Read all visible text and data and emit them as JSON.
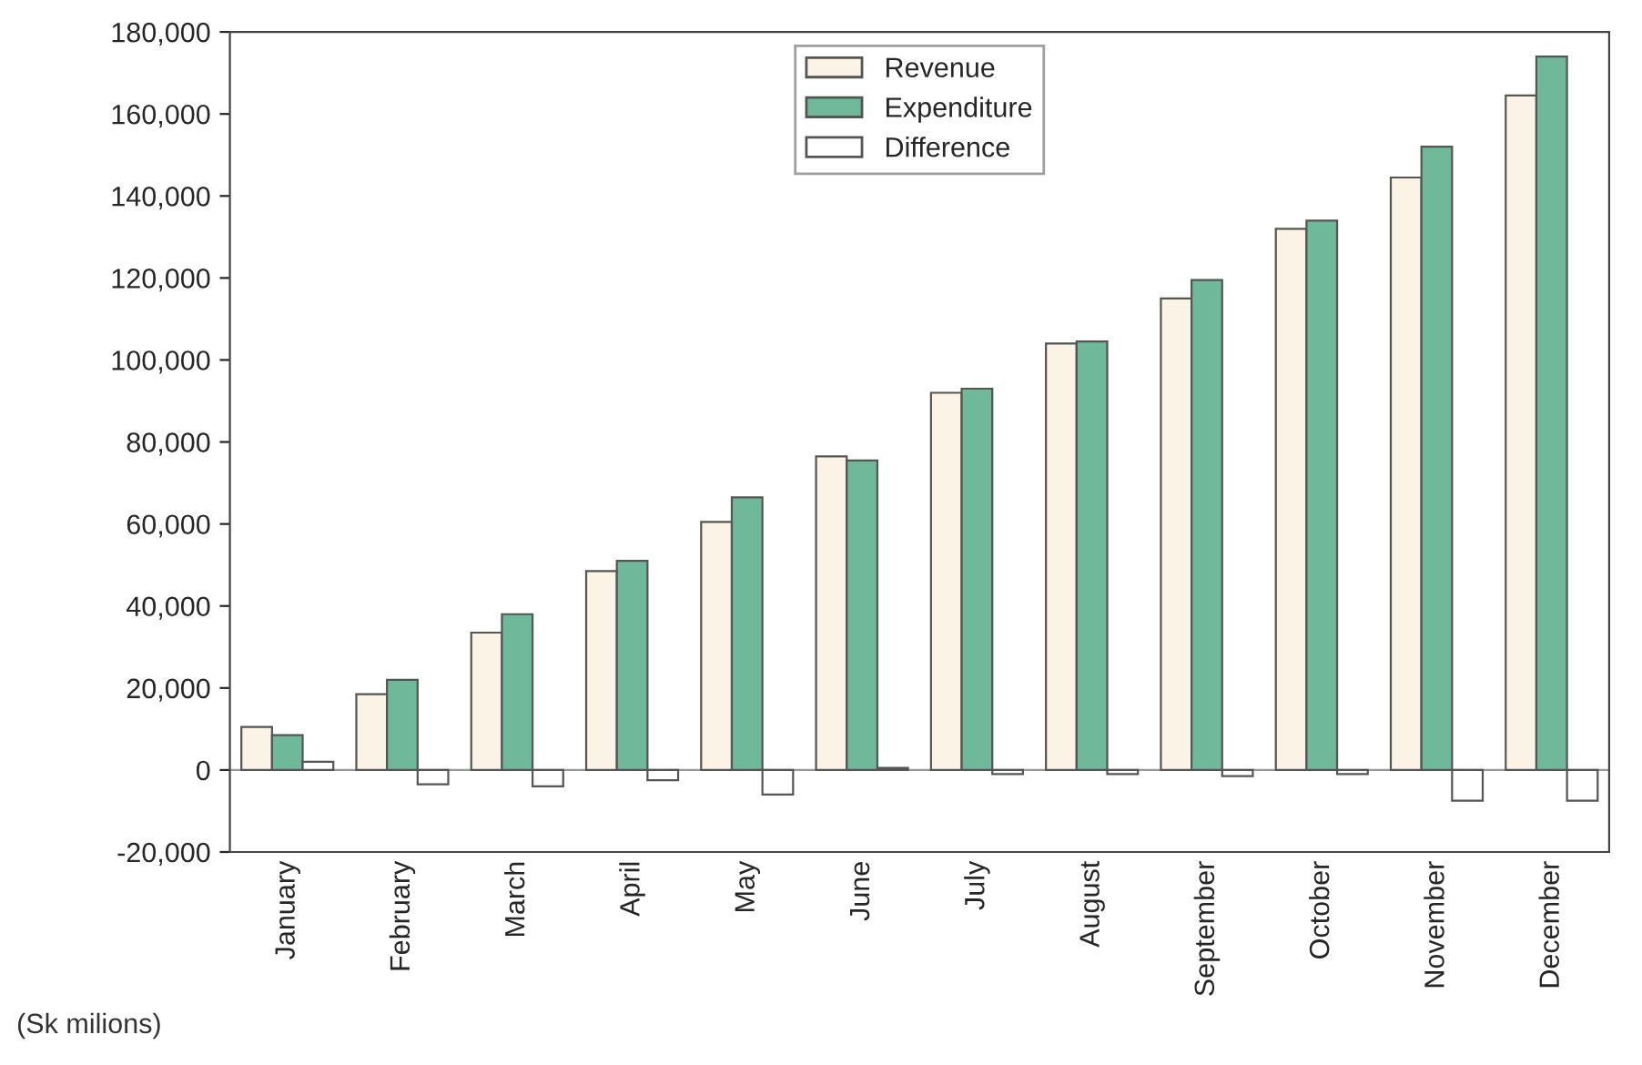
{
  "chart_data": {
    "type": "bar",
    "categories": [
      "January",
      "February",
      "March",
      "April",
      "May",
      "June",
      "July",
      "August",
      "September",
      "October",
      "November",
      "December"
    ],
    "series": [
      {
        "name": "Revenue",
        "color": "#fbf3e6",
        "values": [
          10500,
          18500,
          33500,
          48500,
          60500,
          76500,
          92000,
          104000,
          115000,
          132000,
          144500,
          164500
        ]
      },
      {
        "name": "Expenditure",
        "color": "#6fb89a",
        "values": [
          8500,
          22000,
          38000,
          51000,
          66500,
          75500,
          93000,
          104500,
          119500,
          134000,
          152000,
          174000
        ]
      },
      {
        "name": "Difference",
        "color": "#ffffff",
        "values": [
          2000,
          -3500,
          -4000,
          -2500,
          -6000,
          500,
          -1000,
          -1000,
          -1500,
          -1000,
          -7500,
          -7500
        ]
      }
    ],
    "ylim": [
      -20000,
      180000
    ],
    "yticks": [
      {
        "value": -20000,
        "label": "-20,000"
      },
      {
        "value": 0,
        "label": "0"
      },
      {
        "value": 20000,
        "label": "20,000"
      },
      {
        "value": 40000,
        "label": "40,000"
      },
      {
        "value": 60000,
        "label": "60,000"
      },
      {
        "value": 80000,
        "label": "80,000"
      },
      {
        "value": 100000,
        "label": "100,000"
      },
      {
        "value": 120000,
        "label": "120,000"
      },
      {
        "value": 140000,
        "label": "140,000"
      },
      {
        "value": 160000,
        "label": "160,000"
      },
      {
        "value": 180000,
        "label": "180,000"
      }
    ],
    "annotations": [
      "(Sk milions)"
    ],
    "ref_lines": [
      {
        "axis": "y",
        "value": 0,
        "color": "#999999"
      }
    ],
    "legend": "top",
    "grid": false
  }
}
